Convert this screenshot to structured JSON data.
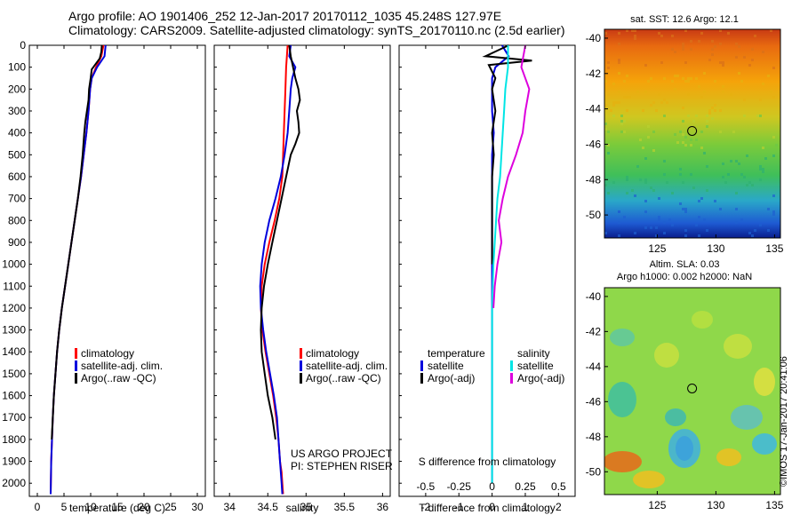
{
  "header": {
    "line1": "Argo profile: AO 1901406_252 12-Jan-2017 20170112_1035 45.248S 127.97E",
    "line2": "Climatology: CARS2009. Satellite-adjusted climatology: synTS_20170110.nc (2.5d earlier)"
  },
  "credit": "©IMOS 17-Jan-2017 20:41:06",
  "colors": {
    "climatology": "#ff0000",
    "satellite": "#0000dd",
    "argo": "#000000",
    "salinity_satellite": "#00e5e5",
    "salinity_argo": "#dd00dd"
  },
  "chart_data": [
    {
      "id": "temperature",
      "type": "line",
      "xlabel": "temperature (deg C)",
      "ylabel": "",
      "xlim": [
        -1.5,
        31.5
      ],
      "ylim": [
        2060,
        0
      ],
      "xticks": [
        "0",
        "5",
        "10",
        "15",
        "20",
        "25",
        "30"
      ],
      "yticks": [
        "0",
        "100",
        "200",
        "300",
        "400",
        "500",
        "600",
        "700",
        "800",
        "900",
        "1000",
        "1100",
        "1200",
        "1300",
        "1400",
        "1500",
        "1600",
        "1700",
        "1800",
        "1900",
        "2000"
      ],
      "grid": false,
      "legend": [
        "climatology",
        "satellite-adj. clim.",
        "Argo(..raw -QC)"
      ],
      "series": [
        {
          "name": "climatology",
          "color": "#ff0000",
          "x": [
            12.4,
            12.0,
            11.0,
            10.2,
            9.9,
            9.6,
            9.2,
            8.7,
            8.2,
            7.6,
            7.0,
            6.4,
            5.8,
            5.2,
            4.6,
            4.1,
            3.7,
            3.4,
            3.1,
            2.9,
            2.75,
            2.6,
            2.5
          ],
          "y": [
            0,
            50,
            100,
            150,
            200,
            300,
            400,
            500,
            600,
            700,
            800,
            900,
            1000,
            1100,
            1200,
            1300,
            1400,
            1500,
            1600,
            1700,
            1800,
            1900,
            2050
          ]
        },
        {
          "name": "satellite-adj. clim.",
          "color": "#0000dd",
          "x": [
            12.8,
            12.6,
            11.2,
            10.2,
            9.9,
            9.6,
            9.2,
            8.7,
            8.2,
            7.6,
            7.0,
            6.4,
            5.8,
            5.2,
            4.6,
            4.1,
            3.7,
            3.4,
            3.1,
            2.9,
            2.75,
            2.6,
            2.5
          ],
          "y": [
            0,
            50,
            100,
            150,
            200,
            300,
            400,
            500,
            600,
            700,
            800,
            900,
            1000,
            1100,
            1200,
            1300,
            1400,
            1500,
            1600,
            1700,
            1800,
            1900,
            2050
          ]
        },
        {
          "name": "Argo(..raw -QC)",
          "color": "#000000",
          "x": [
            12.1,
            12.0,
            11.7,
            10.8,
            10.2,
            10.0,
            9.7,
            9.6,
            9.3,
            9.0,
            8.8,
            8.5,
            8.1,
            7.6,
            7.0,
            6.4,
            5.8,
            5.2,
            4.6,
            4.1,
            3.7,
            3.4,
            3.1,
            2.9,
            2.7
          ],
          "y": [
            0,
            30,
            60,
            90,
            110,
            150,
            200,
            250,
            300,
            350,
            400,
            500,
            600,
            700,
            800,
            900,
            1000,
            1100,
            1200,
            1300,
            1400,
            1500,
            1600,
            1700,
            1800
          ]
        }
      ]
    },
    {
      "id": "salinity",
      "type": "line",
      "xlabel": "salinity",
      "ylabel": "",
      "xlim": [
        33.8,
        36.1
      ],
      "ylim": [
        2060,
        0
      ],
      "xticks": [
        "34",
        "34.5",
        "35",
        "35.5",
        "36"
      ],
      "grid": false,
      "legend": [
        "climatology",
        "satellite-adj. clim.",
        "Argo(..raw -QC)"
      ],
      "annotation": [
        "US ARGO PROJECT",
        "PI: STEPHEN RISER"
      ],
      "series": [
        {
          "name": "climatology",
          "color": "#ff0000",
          "x": [
            34.76,
            34.74,
            34.73,
            34.72,
            34.71,
            34.7,
            34.69,
            34.65,
            34.59,
            34.52,
            34.46,
            34.42,
            34.41,
            34.43,
            34.47,
            34.52,
            34.57,
            34.61,
            34.64,
            34.66,
            34.68,
            34.69,
            34.7
          ],
          "y": [
            0,
            100,
            200,
            300,
            400,
            500,
            600,
            700,
            800,
            900,
            1000,
            1100,
            1200,
            1300,
            1400,
            1500,
            1600,
            1700,
            1800,
            1900,
            1950,
            2000,
            2050
          ]
        },
        {
          "name": "satellite-adj. clim.",
          "color": "#0000dd",
          "x": [
            34.8,
            34.78,
            34.86,
            34.82,
            34.8,
            34.78,
            34.76,
            34.72,
            34.67,
            34.6,
            34.52,
            34.46,
            34.42,
            34.4,
            34.41,
            34.44,
            34.48,
            34.53,
            34.58,
            34.62,
            34.64,
            34.66,
            34.68,
            34.69
          ],
          "y": [
            0,
            50,
            100,
            150,
            200,
            300,
            400,
            500,
            600,
            700,
            800,
            900,
            1000,
            1100,
            1200,
            1300,
            1400,
            1500,
            1600,
            1700,
            1800,
            1900,
            2000,
            2050
          ]
        },
        {
          "name": "Argo(..raw -QC)",
          "color": "#000000",
          "x": [
            34.78,
            34.8,
            34.83,
            34.86,
            34.9,
            34.92,
            34.88,
            34.9,
            34.91,
            34.86,
            34.8,
            34.74,
            34.68,
            34.62,
            34.56,
            34.5,
            34.45,
            34.42,
            34.41,
            34.42,
            34.46,
            34.5,
            34.56,
            34.6
          ],
          "y": [
            0,
            50,
            100,
            150,
            200,
            250,
            300,
            350,
            400,
            450,
            500,
            600,
            700,
            800,
            900,
            1000,
            1100,
            1200,
            1300,
            1400,
            1500,
            1600,
            1700,
            1800
          ]
        }
      ]
    },
    {
      "id": "difference",
      "type": "line",
      "xlabel": "T difference from climatology",
      "ylabel": "",
      "xlim": [
        -2.8,
        2.5
      ],
      "ylim": [
        2060,
        0
      ],
      "xticks": [
        "-2",
        "-1",
        "0",
        "1",
        "2"
      ],
      "top_axis_label": "S difference from climatology",
      "top_ticks": [
        "-0.5",
        "-0.25",
        "0",
        "0.25",
        "0.5"
      ],
      "grid": false,
      "legend_temperature": [
        "temperature",
        "satellite",
        "Argo(-adj)"
      ],
      "legend_salinity": [
        "salinity",
        "satellite",
        "Argo(-adj)"
      ],
      "series": [
        {
          "name": "T satellite",
          "color": "#0000dd",
          "x": [
            0.3,
            0.5,
            0.1,
            0.0,
            0.0,
            0.0,
            0.05,
            0.0,
            0.0,
            0.0,
            0.0,
            0.0,
            0.0,
            0.0,
            0.0,
            0.0,
            0.0,
            0.0,
            0.0,
            0.0,
            0.0,
            0.0
          ],
          "y": [
            0,
            50,
            100,
            150,
            200,
            300,
            400,
            500,
            600,
            700,
            800,
            900,
            1000,
            1100,
            1200,
            1300,
            1400,
            1500,
            1600,
            1700,
            1800,
            2000
          ]
        },
        {
          "name": "T Argo(-adj)",
          "color": "#000000",
          "x": [
            0.5,
            -0.2,
            1.2,
            -0.1,
            0.1,
            0.0,
            0.1,
            0.0,
            0.05,
            0.0,
            0.0,
            0.0,
            0.0,
            0.0
          ],
          "y": [
            0,
            50,
            70,
            90,
            150,
            200,
            300,
            400,
            500,
            600,
            700,
            800,
            900,
            1000
          ]
        },
        {
          "name": "S satellite",
          "color": "#00e5e5",
          "x": [
            0.12,
            0.12,
            0.1,
            0.09,
            0.08,
            0.07,
            0.06,
            0.04,
            0.03,
            0.02,
            0.01,
            0.0,
            0.0,
            0.0,
            0.0,
            0.0,
            0.0,
            0.0,
            0.0
          ],
          "y": [
            0,
            100,
            200,
            300,
            400,
            500,
            600,
            700,
            800,
            900,
            1000,
            1200,
            1300,
            1400,
            1500,
            1600,
            1700,
            1800,
            2000
          ]
        },
        {
          "name": "S Argo(-adj)",
          "color": "#dd00dd",
          "x": [
            0.25,
            0.22,
            0.28,
            0.25,
            0.23,
            0.18,
            0.12,
            0.08,
            0.05,
            0.07,
            0.04,
            0.02,
            0.01
          ],
          "y": [
            0,
            100,
            200,
            300,
            400,
            500,
            600,
            700,
            800,
            900,
            1000,
            1100,
            1200
          ]
        }
      ]
    },
    {
      "id": "sst_map",
      "type": "heatmap",
      "title": "sat. SST: 12.6  Argo: 12.1",
      "xlim": [
        120.5,
        135.5
      ],
      "ylim": [
        -51.3,
        -39.5
      ],
      "xticks": [
        "125",
        "130",
        "135"
      ],
      "yticks": [
        "-40",
        "-42",
        "-44",
        "-46",
        "-48",
        "-50"
      ],
      "marker": {
        "lon": 127.97,
        "lat": -45.248
      }
    },
    {
      "id": "sla_map",
      "type": "heatmap",
      "title_line1": "Altim. SLA: 0.03",
      "title_line2": "Argo h1000: 0.002 h2000: NaN",
      "xlim": [
        120.5,
        135.5
      ],
      "ylim": [
        -51.3,
        -39.5
      ],
      "xticks": [
        "125",
        "130",
        "135"
      ],
      "yticks": [
        "-40",
        "-42",
        "-44",
        "-46",
        "-48",
        "-50"
      ],
      "marker": {
        "lon": 127.97,
        "lat": -45.248
      }
    }
  ]
}
